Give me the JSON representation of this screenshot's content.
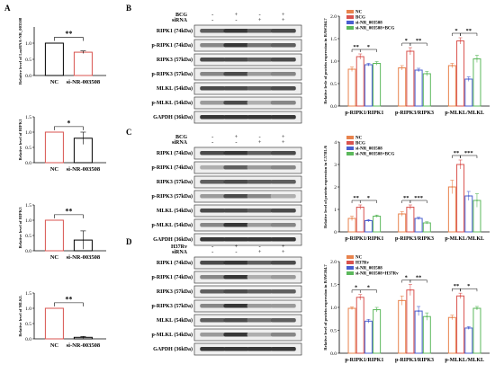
{
  "panel_labels": [
    "A",
    "B",
    "C",
    "D"
  ],
  "blot_panels": [
    {
      "id": "B",
      "header_rows": [
        {
          "label": "BCG",
          "signs": [
            "-",
            "+",
            "-",
            "+"
          ]
        },
        {
          "label": "siRNA",
          "signs": [
            "-",
            "-",
            "+",
            "+"
          ]
        }
      ],
      "rows": [
        "RIPK1 (74kDa)",
        "p-RIPK1 (74kDa)",
        "RIPK3 (57kDa)",
        "p-RIPK3 (57kDa)",
        "MLKL (54kDa)",
        "p-MLKL (54kDa)",
        "GAPDH (36kDa)"
      ]
    },
    {
      "id": "C",
      "header_rows": [
        {
          "label": "BCG",
          "signs": [
            "-",
            "+",
            "-",
            "+"
          ]
        },
        {
          "label": "siRNA",
          "signs": [
            "-",
            "-",
            "+",
            "+"
          ]
        }
      ],
      "rows": [
        "RIPK1 (74kDa)",
        "p-RIPK1 (74kDa)",
        "RIPK3 (57kDa)",
        "p-RIPK3 (57kDa)",
        "MLKL (54kDa)",
        "p-MLKL (54kDa)",
        "GAPDH (36kDa)"
      ]
    },
    {
      "id": "D",
      "header_rows": [
        {
          "label": "H37Rv",
          "signs": [
            "-",
            "+",
            "-",
            "+"
          ]
        },
        {
          "label": "siRNA",
          "signs": [
            "-",
            "-",
            "+",
            "+"
          ]
        }
      ],
      "rows": [
        "RIPK1 (74kDa)",
        "p-RIPK1 (74kDa)",
        "RIPK3 (57kDa)",
        "p-RIPK3 (57kDa)",
        "MLKL (54kDa)",
        "p-MLKL (54kDa)",
        "GAPDH (36kDa)"
      ]
    }
  ],
  "chart_data": [
    {
      "type": "bar",
      "panel": "A",
      "categories": [
        "NC",
        "si-NR-003508"
      ],
      "values": [
        1.0,
        0.72
      ],
      "errors": [
        0,
        0.04
      ],
      "ylabel": "Relative level of LncRNA-NR_003508",
      "ylim": [
        0,
        1.5
      ],
      "yticks": [
        "0.0",
        "0.5",
        "1.0"
      ],
      "significance": [
        {
          "from": 0,
          "to": 1,
          "label": "**"
        }
      ],
      "colors": [
        "#000000",
        "#d9534f"
      ]
    },
    {
      "type": "bar",
      "panel": "A",
      "categories": [
        "NC",
        "si-NR-003508"
      ],
      "values": [
        1.0,
        0.8
      ],
      "errors": [
        0,
        0.2
      ],
      "ylabel": "Relative level of RIPK1",
      "ylim": [
        0,
        1.5
      ],
      "yticks": [
        "0.0",
        "0.5",
        "1.0",
        "1.5"
      ],
      "significance": [
        {
          "from": 0,
          "to": 1,
          "label": "*"
        }
      ],
      "colors": [
        "#d9534f",
        "#000000"
      ]
    },
    {
      "type": "bar",
      "panel": "A",
      "categories": [
        "NC",
        "si-NR-003508"
      ],
      "values": [
        1.0,
        0.35
      ],
      "errors": [
        0,
        0.3
      ],
      "ylabel": "Relative level of RIPK3",
      "ylim": [
        0,
        1.5
      ],
      "yticks": [
        "0.0",
        "0.5",
        "1.0",
        "1.5"
      ],
      "significance": [
        {
          "from": 0,
          "to": 1,
          "label": "**"
        }
      ],
      "colors": [
        "#d9534f",
        "#000000"
      ]
    },
    {
      "type": "bar",
      "panel": "A",
      "categories": [
        "NC",
        "si-NR-003508"
      ],
      "values": [
        1.0,
        0.05
      ],
      "errors": [
        0,
        0.03
      ],
      "ylabel": "Relative level of MLKL",
      "ylim": [
        0,
        1.5
      ],
      "yticks": [
        "0.0",
        "0.5",
        "1.0",
        "1.5"
      ],
      "significance": [
        {
          "from": 0,
          "to": 1,
          "label": "**"
        }
      ],
      "colors": [
        "#d9534f",
        "#000000"
      ]
    },
    {
      "type": "bar",
      "panel": "B",
      "categories": [
        "p-RIPK1/RIPK1",
        "p-RIPK3/RIPK3",
        "p-MLKL/MLKL"
      ],
      "series": [
        {
          "name": "NC",
          "values": [
            0.82,
            0.85,
            0.9
          ],
          "errors": [
            0.05,
            0.05,
            0.05
          ],
          "color": "#e8834d"
        },
        {
          "name": "BCG",
          "values": [
            1.1,
            1.22,
            1.45
          ],
          "errors": [
            0.06,
            0.08,
            0.07
          ],
          "color": "#d9534f"
        },
        {
          "name": "si-NR_003508",
          "values": [
            0.92,
            0.8,
            0.6
          ],
          "errors": [
            0.03,
            0.04,
            0.05
          ],
          "color": "#4a5fd0"
        },
        {
          "name": "si-NR_003508+BCG",
          "values": [
            0.95,
            0.72,
            1.05
          ],
          "errors": [
            0.04,
            0.05,
            0.08
          ],
          "color": "#5cb85c"
        }
      ],
      "ylabel": "Relative levle of protein expression in RAW264.7",
      "ylim": [
        0,
        2.0
      ],
      "yticks": [
        "0.0",
        "0.5",
        "1.0",
        "1.5",
        "2.0"
      ],
      "significance": [
        {
          "group": 0,
          "pairs": [
            [
              "0",
              "1",
              "**"
            ],
            [
              "1",
              "3",
              "*"
            ]
          ]
        },
        {
          "group": 1,
          "pairs": [
            [
              "0",
              "1",
              "*"
            ],
            [
              "1",
              "3",
              "**"
            ]
          ]
        },
        {
          "group": 2,
          "pairs": [
            [
              "0",
              "1",
              "*"
            ],
            [
              "1",
              "3",
              "**"
            ]
          ]
        }
      ]
    },
    {
      "type": "bar",
      "panel": "C",
      "categories": [
        "p-RIPK1/RIPK1",
        "p-RIPK3/RIPK3",
        "p-MLKL/MLKL"
      ],
      "series": [
        {
          "name": "NC",
          "values": [
            0.6,
            0.8,
            2.0
          ],
          "errors": [
            0.1,
            0.1,
            0.3
          ],
          "color": "#e8834d"
        },
        {
          "name": "BCG",
          "values": [
            1.1,
            1.1,
            3.0
          ],
          "errors": [
            0.1,
            0.1,
            0.2
          ],
          "color": "#d9534f"
        },
        {
          "name": "si-NR_003508",
          "values": [
            0.5,
            0.6,
            1.6
          ],
          "errors": [
            0.05,
            0.05,
            0.2
          ],
          "color": "#4a5fd0"
        },
        {
          "name": "si-NR_003508+BCG",
          "values": [
            0.7,
            0.4,
            1.4
          ],
          "errors": [
            0.05,
            0.05,
            0.3
          ],
          "color": "#5cb85c"
        }
      ],
      "ylabel": "Relative level of protein expression in C57BL/6",
      "ylim": [
        0,
        4
      ],
      "yticks": [
        "0",
        "1",
        "2",
        "3",
        "4"
      ],
      "significance": [
        {
          "group": 0,
          "pairs": [
            [
              "0",
              "1",
              "**"
            ],
            [
              "1",
              "3",
              "*"
            ]
          ]
        },
        {
          "group": 1,
          "pairs": [
            [
              "0",
              "1",
              "**"
            ],
            [
              "1",
              "3",
              "***"
            ]
          ]
        },
        {
          "group": 2,
          "pairs": [
            [
              "0",
              "1",
              "**"
            ],
            [
              "1",
              "3",
              "***"
            ]
          ]
        }
      ]
    },
    {
      "type": "bar",
      "panel": "D",
      "categories": [
        "p-RIPK1/RIPK1",
        "p-RIPK3/RIPK3",
        "p-MLKL/MLKL"
      ],
      "series": [
        {
          "name": "NC",
          "values": [
            0.98,
            1.15,
            0.78
          ],
          "errors": [
            0.03,
            0.1,
            0.05
          ],
          "color": "#e8834d"
        },
        {
          "name": "H37Rv",
          "values": [
            1.22,
            1.38,
            1.25
          ],
          "errors": [
            0.06,
            0.12,
            0.06
          ],
          "color": "#d9534f"
        },
        {
          "name": "si-NR_003508",
          "values": [
            0.7,
            0.92,
            0.55
          ],
          "errors": [
            0.04,
            0.1,
            0.03
          ],
          "color": "#4a5fd0"
        },
        {
          "name": "si-NR_003508+H37Rv",
          "values": [
            0.95,
            0.8,
            0.98
          ],
          "errors": [
            0.05,
            0.08,
            0.04
          ],
          "color": "#5cb85c"
        }
      ],
      "ylabel": "Relative level of protein expression in RAW264.7",
      "ylim": [
        0,
        2.0
      ],
      "yticks": [
        "0.0",
        "0.5",
        "1.0",
        "1.5",
        "2.0"
      ],
      "significance": [
        {
          "group": 0,
          "pairs": [
            [
              "0",
              "1",
              "*"
            ],
            [
              "1",
              "3",
              "*"
            ]
          ]
        },
        {
          "group": 1,
          "pairs": [
            [
              "0",
              "1",
              "*"
            ],
            [
              "1",
              "3",
              "**"
            ]
          ]
        },
        {
          "group": 2,
          "pairs": [
            [
              "0",
              "1",
              "**"
            ],
            [
              "1",
              "3",
              "*"
            ]
          ]
        }
      ]
    }
  ]
}
